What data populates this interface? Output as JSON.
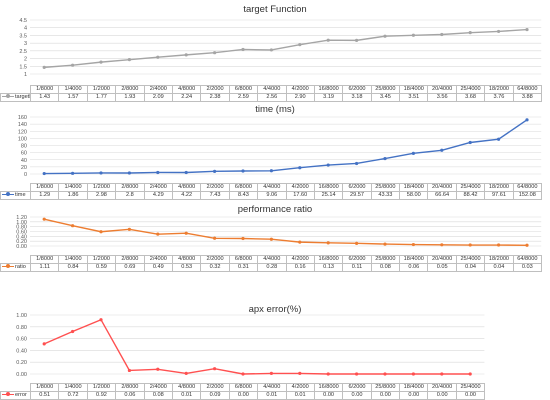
{
  "chart_data": [
    {
      "type": "line",
      "title": "target Function",
      "categories": [
        "1/8000",
        "1/4000",
        "1/2000",
        "2/8000",
        "2/4000",
        "4/8000",
        "2/2000",
        "6/8000",
        "4/4000",
        "4/2000",
        "16/8000",
        "6/2000",
        "25/8000",
        "18/4000",
        "20/4000",
        "25/4000",
        "18/2000",
        "64/8000"
      ],
      "series": [
        {
          "name": "targetFunction",
          "values": [
            1.43,
            1.57,
            1.77,
            1.93,
            2.09,
            2.24,
            2.38,
            2.59,
            2.56,
            2.9,
            3.19,
            3.18,
            3.45,
            3.51,
            3.56,
            3.68,
            3.76,
            3.88
          ]
        }
      ],
      "value_labels": [
        "1.43",
        "1.57",
        "1.77",
        "1.93",
        "2.09",
        "2.24",
        "2.38",
        "2.59",
        "2.56",
        "2.90",
        "3.19",
        "3.18",
        "3.45",
        "3.51",
        "3.56",
        "3.68",
        "3.76",
        "3.88"
      ],
      "ylim": [
        1,
        4.5
      ],
      "y_ticks": [
        "1",
        "1.5",
        "2",
        "2.5",
        "3",
        "3.5",
        "4",
        "4.5"
      ],
      "color": "#a5a5a5",
      "grid": true,
      "legend": "data-table"
    },
    {
      "type": "line",
      "title": "time (ms)",
      "categories": [
        "1/8000",
        "1/4000",
        "1/2000",
        "2/8000",
        "2/4000",
        "4/8000",
        "2/2000",
        "6/8000",
        "4/4000",
        "4/2000",
        "16/8000",
        "6/2000",
        "25/8000",
        "18/4000",
        "20/4000",
        "25/4000",
        "18/2000",
        "64/8000"
      ],
      "series": [
        {
          "name": "time",
          "values": [
            1.29,
            1.86,
            2.98,
            2.8,
            4.29,
            4.22,
            7.43,
            8.43,
            9.06,
            17.6,
            25.14,
            29.57,
            43.33,
            58.0,
            66.64,
            88.42,
            97.61,
            152.08
          ]
        }
      ],
      "value_labels": [
        "1.29",
        "1.86",
        "2.98",
        "2.8",
        "4.29",
        "4.22",
        "7.43",
        "8.43",
        "9.06",
        "17.60",
        "25.14",
        "29.57",
        "43.33",
        "58.00",
        "66.64",
        "88.42",
        "97.61",
        "152.08"
      ],
      "ylim": [
        0,
        160
      ],
      "y_ticks": [
        "0",
        "20",
        "40",
        "60",
        "80",
        "100",
        "120",
        "140",
        "160"
      ],
      "color": "#4472c4",
      "grid": true,
      "legend": "data-table"
    },
    {
      "type": "line",
      "title": "performance ratio",
      "categories": [
        "1/8000",
        "1/4000",
        "1/2000",
        "2/8000",
        "2/4000",
        "4/8000",
        "2/2000",
        "6/8000",
        "4/4000",
        "4/2000",
        "16/8000",
        "6/2000",
        "25/8000",
        "18/4000",
        "20/4000",
        "25/4000",
        "18/2000",
        "64/8000"
      ],
      "series": [
        {
          "name": "ratio",
          "values": [
            1.11,
            0.84,
            0.59,
            0.69,
            0.49,
            0.53,
            0.32,
            0.31,
            0.28,
            0.16,
            0.13,
            0.11,
            0.08,
            0.06,
            0.05,
            0.04,
            0.04,
            0.03
          ]
        }
      ],
      "value_labels": [
        "1.11",
        "0.84",
        "0.59",
        "0.69",
        "0.49",
        "0.53",
        "0.32",
        "0.31",
        "0.28",
        "0.16",
        "0.13",
        "0.11",
        "0.08",
        "0.06",
        "0.05",
        "0.04",
        "0.04",
        "0.03"
      ],
      "ylim": [
        0,
        1.2
      ],
      "y_ticks": [
        "0.00",
        "0.20",
        "0.40",
        "0.60",
        "0.80",
        "1.00",
        "1.20"
      ],
      "color": "#ed7d31",
      "grid": true,
      "legend": "data-table"
    },
    {
      "type": "line",
      "title": "apx error(%)",
      "categories": [
        "1/8000",
        "1/4000",
        "1/2000",
        "2/8000",
        "2/4000",
        "4/8000",
        "2/2000",
        "6/8000",
        "4/4000",
        "4/2000",
        "16/8000",
        "6/2000",
        "25/8000",
        "18/4000",
        "20/4000",
        "25/4000"
      ],
      "series": [
        {
          "name": "error",
          "values": [
            0.51,
            0.72,
            0.92,
            0.06,
            0.08,
            0.01,
            0.09,
            0.0,
            0.01,
            0.01,
            0.0,
            0.0,
            0.0,
            0.0,
            0.0,
            0.0
          ]
        }
      ],
      "value_labels": [
        "0.51",
        "0.72",
        "0.92",
        "0.06",
        "0.08",
        "0.01",
        "0.09",
        "0.00",
        "0.01",
        "0.01",
        "0.00",
        "0.00",
        "0.00",
        "0.00",
        "0.00",
        "0.00"
      ],
      "ylim": [
        0,
        1.0
      ],
      "y_ticks": [
        "0.00",
        "0.20",
        "0.40",
        "0.60",
        "0.80",
        "1.00"
      ],
      "color": "#ff5050",
      "grid": true,
      "legend": "data-table"
    }
  ]
}
